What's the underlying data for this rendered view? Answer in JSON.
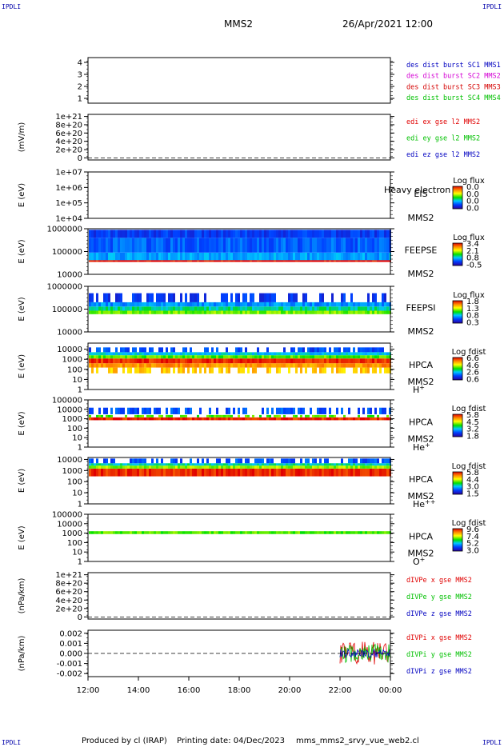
{
  "header": {
    "corner_label": "IPDLI",
    "mission": "MMS2",
    "datetime": "26/Apr/2021 12:00"
  },
  "footer": {
    "produced_by": "Produced by cl (IRAP)",
    "printing_date": "Printing date: 04/Dec/2023",
    "file": "mms_mms2_srvy_vue_web2.cl"
  },
  "colors": {
    "mms1": "#0000c0",
    "mms2": "#d400d4",
    "mms3": "#d40000",
    "mms4": "#00c000",
    "x": "#e00000",
    "y": "#00c000",
    "z": "#0000c0"
  },
  "chart_data": [
    {
      "id": "ion-burst",
      "type": "line",
      "yticks": [
        "1",
        "2",
        "3",
        "4"
      ],
      "ylim": [
        0.6,
        4.4
      ],
      "legend": [
        {
          "text": "des dist burst SC1 MMS1",
          "color": "#0000c0"
        },
        {
          "text": "des dist burst SC2 MMS2",
          "color": "#d400d4"
        },
        {
          "text": "des dist burst SC3 MMS3",
          "color": "#d40000"
        },
        {
          "text": "des dist burst SC4 MMS4",
          "color": "#00c000"
        }
      ]
    },
    {
      "id": "edi-e",
      "type": "line",
      "ylabel": "(mV/m)",
      "yticks": [
        "0",
        "2e+20",
        "4e+20",
        "6e+20",
        "8e+20",
        "1e+21"
      ],
      "ylim": [
        -5e+19,
        1.05e+21
      ],
      "zero_line": true,
      "legend": [
        {
          "text": "edi ex gse l2 MMS2",
          "color": "#e00000"
        },
        {
          "text": "edi ey gse l2 MMS2",
          "color": "#00c000"
        },
        {
          "text": "edi ez gse l2 MMS2",
          "color": "#0000c0"
        }
      ]
    },
    {
      "id": "eis",
      "type": "heatmap",
      "ylabel": "E (eV)",
      "yscale": "log",
      "yticks": [
        "1e+04",
        "1e+05",
        "1e+06",
        "1e+07"
      ],
      "ylim": [
        10000,
        10000000
      ],
      "instrument": "EIS",
      "spacecraft": "MMS2",
      "overlay_text": "Heavy electron to",
      "colorbar": {
        "title": "Log flux",
        "values": [
          "0.0",
          "0.0",
          "0.0",
          "0.0"
        ]
      },
      "bands": []
    },
    {
      "id": "feeps-e",
      "type": "heatmap",
      "ylabel": "E (eV)",
      "yscale": "log",
      "yticks": [
        "10000",
        "100000",
        "1000000"
      ],
      "ylim": [
        10000,
        1000000
      ],
      "instrument": "FEEPSE",
      "spacecraft": "MMS2",
      "colorbar": {
        "title": "Log flux",
        "values": [
          "3.4",
          "2.1",
          "0.8",
          "-0.5"
        ]
      },
      "bands": [
        {
          "e_low": 35000,
          "e_high": 42000,
          "level": 1.0
        },
        {
          "e_low": 42000,
          "e_high": 90000,
          "level": 0.3
        },
        {
          "e_low": 90000,
          "e_high": 400000,
          "level": 0.22
        },
        {
          "e_low": 400000,
          "e_high": 900000,
          "level": 0.16
        }
      ]
    },
    {
      "id": "feeps-i",
      "type": "heatmap",
      "ylabel": "E (eV)",
      "yscale": "log",
      "yticks": [
        "10000",
        "100000",
        "1000000"
      ],
      "ylim": [
        10000,
        1000000
      ],
      "instrument": "FEEPSI",
      "spacecraft": "MMS2",
      "colorbar": {
        "title": "Log flux",
        "values": [
          "1.8",
          "1.3",
          "0.8",
          "0.3"
        ]
      },
      "bands": [
        {
          "e_low": 60000,
          "e_high": 85000,
          "level": 0.58
        },
        {
          "e_low": 85000,
          "e_high": 130000,
          "level": 0.42
        },
        {
          "e_low": 130000,
          "e_high": 200000,
          "level": 0.28
        },
        {
          "e_low": 200000,
          "e_high": 500000,
          "level": 0.15,
          "sparse": true
        }
      ]
    },
    {
      "id": "hpca-h",
      "type": "heatmap",
      "ylabel": "E (eV)",
      "yscale": "log",
      "yticks": [
        "1",
        "10",
        "100",
        "1000",
        "10000"
      ],
      "ylim": [
        1,
        40000
      ],
      "instrument": "HPCA",
      "spacecraft": "MMS2",
      "species": "H",
      "charge": "+",
      "colorbar": {
        "title": "Log fdist",
        "values": [
          "6.6",
          "4.6",
          "2.6",
          "0.6"
        ]
      },
      "bands": [
        {
          "e_low": 40,
          "e_high": 150,
          "level": 0.75,
          "sparse": true
        },
        {
          "e_low": 150,
          "e_high": 400,
          "level": 0.82
        },
        {
          "e_low": 400,
          "e_high": 1200,
          "level": 0.95
        },
        {
          "e_low": 1200,
          "e_high": 2500,
          "level": 0.55
        },
        {
          "e_low": 2500,
          "e_high": 5000,
          "level": 0.35
        },
        {
          "e_low": 5000,
          "e_high": 15000,
          "level": 0.18,
          "sparse": true
        }
      ]
    },
    {
      "id": "hpca-he",
      "type": "heatmap",
      "ylabel": "E (eV)",
      "yscale": "log",
      "yticks": [
        "1",
        "10",
        "100",
        "1000",
        "10000",
        "100000"
      ],
      "ylim": [
        1,
        100000
      ],
      "instrument": "HPCA",
      "spacecraft": "MMS2",
      "species": "He",
      "charge": "+",
      "colorbar": {
        "title": "Log fdist",
        "values": [
          "5.8",
          "4.5",
          "3.2",
          "1.8"
        ]
      },
      "bands": [
        {
          "e_low": 700,
          "e_high": 1400,
          "level": 0.95
        },
        {
          "e_low": 1400,
          "e_high": 2500,
          "level": 0.55,
          "sparse": true
        },
        {
          "e_low": 3000,
          "e_high": 15000,
          "level": 0.2,
          "sparse": true
        }
      ]
    },
    {
      "id": "hpca-hepp",
      "type": "heatmap",
      "ylabel": "E (eV)",
      "yscale": "log",
      "yticks": [
        "1",
        "10",
        "100",
        "1000",
        "10000"
      ],
      "ylim": [
        1,
        15000
      ],
      "instrument": "HPCA",
      "spacecraft": "MMS2",
      "species": "He",
      "charge": "++",
      "colorbar": {
        "title": "Log fdist",
        "values": [
          "5.8",
          "4.4",
          "3.0",
          "1.5"
        ]
      },
      "bands": [
        {
          "e_low": 300,
          "e_high": 1500,
          "level": 0.95
        },
        {
          "e_low": 1500,
          "e_high": 2800,
          "level": 0.6
        },
        {
          "e_low": 2800,
          "e_high": 4500,
          "level": 0.4
        },
        {
          "e_low": 4500,
          "e_high": 12000,
          "level": 0.2,
          "sparse": true
        }
      ]
    },
    {
      "id": "hpca-o",
      "type": "heatmap",
      "ylabel": "E (eV)",
      "yscale": "log",
      "yticks": [
        "1",
        "10",
        "100",
        "1000",
        "10000",
        "100000"
      ],
      "ylim": [
        1,
        100000
      ],
      "instrument": "HPCA",
      "spacecraft": "MMS2",
      "species": "O",
      "charge": "+",
      "colorbar": {
        "title": "Log fdist",
        "values": [
          "9.6",
          "7.4",
          "5.2",
          "3.0"
        ]
      },
      "bands": [
        {
          "e_low": 800,
          "e_high": 1600,
          "level": 0.55
        }
      ]
    },
    {
      "id": "divpe",
      "type": "line",
      "ylabel": "(nPa/km)",
      "yticks": [
        "0",
        "2e+20",
        "4e+20",
        "6e+20",
        "8e+20",
        "1e+21"
      ],
      "ylim": [
        -5e+19,
        1.05e+21
      ],
      "zero_line": true,
      "legend": [
        {
          "text": "dIVPe x gse MMS2",
          "color": "#e00000"
        },
        {
          "text": "dIVPe y gse MMS2",
          "color": "#00c000"
        },
        {
          "text": "dIVPe z gse MMS2",
          "color": "#0000c0"
        }
      ]
    },
    {
      "id": "divpi",
      "type": "line",
      "ylabel": "(nPa/km)",
      "yticks": [
        "-0.002",
        "-0.001",
        "0.000",
        "0.001",
        "0.002"
      ],
      "ylim": [
        -0.0023,
        0.0023
      ],
      "zero_line": true,
      "data_start_hour": 22.0,
      "amplitude": [
        0.0012,
        0.0009,
        0.0004
      ],
      "legend": [
        {
          "text": "dIVPi x gse MMS2",
          "color": "#e00000"
        },
        {
          "text": "dIVPi y gse MMS2",
          "color": "#00c000"
        },
        {
          "text": "dIVPi z gse MMS2",
          "color": "#0000c0"
        }
      ]
    }
  ],
  "time_axis": {
    "start_hour": 12,
    "end_hour": 24,
    "ticks": [
      "12:00",
      "14:00",
      "16:00",
      "18:00",
      "20:00",
      "22:00",
      "00:00"
    ]
  }
}
